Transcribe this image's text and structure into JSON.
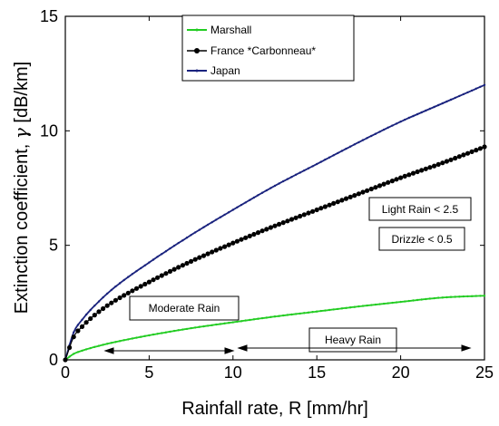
{
  "chart_data": {
    "type": "line",
    "xlabel": "Rainfall rate, R [mm/hr]",
    "ylabel_prefix": "Extinction coefficient, ",
    "ylabel_gamma": "γ",
    "ylabel_unit": " [dB/km]",
    "xlim": [
      0,
      25
    ],
    "ylim": [
      0,
      15
    ],
    "xticks": [
      0,
      5,
      10,
      15,
      20,
      25
    ],
    "yticks": [
      0,
      5,
      10,
      15
    ],
    "xtick_labels": [
      "0",
      "5",
      "10",
      "15",
      "20",
      "25"
    ],
    "ytick_labels": [
      "0",
      "5",
      "10",
      "15"
    ],
    "grid": false,
    "legend_position": "top-center",
    "series": [
      {
        "name": "Marshall",
        "color": "#22cc22",
        "marker": "dot-small",
        "x": [
          0,
          0.5,
          1,
          2,
          3,
          5,
          7.5,
          10,
          12.5,
          15,
          17.5,
          20,
          22.5,
          25
        ],
        "y": [
          0,
          0.26,
          0.4,
          0.61,
          0.78,
          1.07,
          1.38,
          1.64,
          1.89,
          2.11,
          2.33,
          2.53,
          2.72,
          2.8
        ]
      },
      {
        "name": "France *Carbonneau*",
        "color": "#000000",
        "marker": "dot",
        "x": [
          0,
          0.5,
          1,
          2,
          3,
          5,
          7.5,
          10,
          12.5,
          15,
          17.5,
          20,
          22.5,
          25
        ],
        "y": [
          0,
          1.0,
          1.45,
          2.1,
          2.6,
          3.4,
          4.3,
          5.1,
          5.85,
          6.55,
          7.25,
          7.95,
          8.6,
          9.3
        ]
      },
      {
        "name": "Japan",
        "color": "#1a237e",
        "marker": "dot-small",
        "x": [
          0,
          0.5,
          1,
          2,
          3,
          5,
          7.5,
          10,
          12.5,
          15,
          17.5,
          20,
          22.5,
          25
        ],
        "y": [
          0,
          1.2,
          1.75,
          2.55,
          3.2,
          4.25,
          5.45,
          6.55,
          7.6,
          8.55,
          9.5,
          10.4,
          11.2,
          12.0
        ]
      }
    ],
    "annotations": [
      {
        "text": "Light Rain < 2.5"
      },
      {
        "text": "Drizzle < 0.5"
      },
      {
        "text": "Moderate Rain",
        "range": [
          2.5,
          10
        ]
      },
      {
        "text": "Heavy Rain",
        "range": [
          10.5,
          25
        ]
      }
    ]
  }
}
